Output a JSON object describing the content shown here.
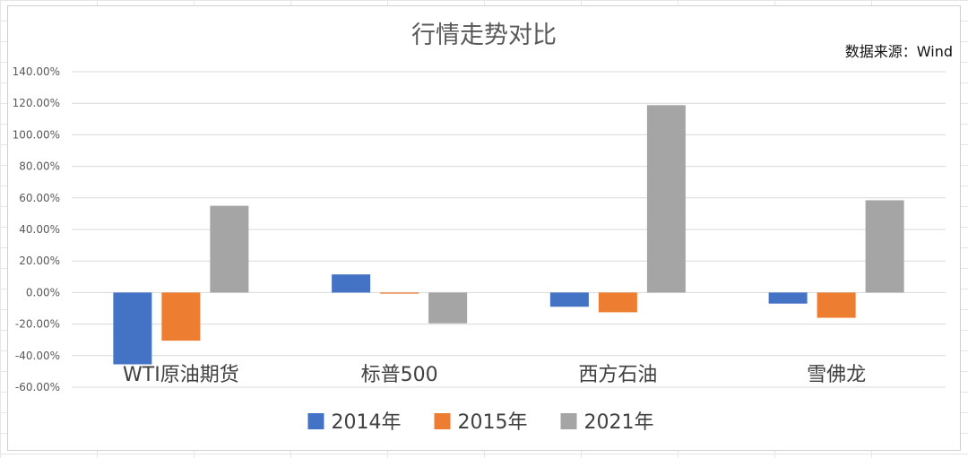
{
  "chart_data": {
    "type": "bar",
    "title": "行情走势对比",
    "source": "数据来源：Wind",
    "categories": [
      "WTI原油期货",
      "标普500",
      "西方石油",
      "雪佛龙"
    ],
    "series": [
      {
        "name": "2014年",
        "color": "#4472C4",
        "values": [
          -45.5,
          11.5,
          -9.0,
          -7.0
        ]
      },
      {
        "name": "2015年",
        "color": "#ED7D31",
        "values": [
          -30.5,
          -0.7,
          -12.5,
          -16.0
        ]
      },
      {
        "name": "2021年",
        "color": "#A5A5A5",
        "values": [
          55.0,
          -19.5,
          118.8,
          58.5
        ]
      }
    ],
    "yticks": [
      "-60.00%",
      "-40.00%",
      "-20.00%",
      "0.00%",
      "20.00%",
      "40.00%",
      "60.00%",
      "80.00%",
      "100.00%",
      "120.00%",
      "140.00%"
    ],
    "ylim": [
      -60,
      140
    ],
    "ylabel": "",
    "xlabel": "",
    "grid": true,
    "legend": "bottom"
  }
}
